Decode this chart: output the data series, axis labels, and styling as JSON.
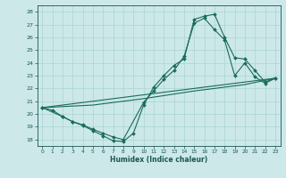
{
  "xlabel": "Humidex (Indice chaleur)",
  "xlim": [
    -0.5,
    23.5
  ],
  "ylim": [
    17.5,
    28.5
  ],
  "yticks": [
    18,
    19,
    20,
    21,
    22,
    23,
    24,
    25,
    26,
    27,
    28
  ],
  "xticks": [
    0,
    1,
    2,
    3,
    4,
    5,
    6,
    7,
    8,
    9,
    10,
    11,
    12,
    13,
    14,
    15,
    16,
    17,
    18,
    19,
    20,
    21,
    22,
    23
  ],
  "background_color": "#cce8e8",
  "grid_color": "#aad4d4",
  "line_color": "#1a6b5a",
  "line1_x": [
    0,
    1,
    2,
    3,
    4,
    5,
    6,
    7,
    8,
    9,
    10,
    11,
    12,
    13,
    14,
    15,
    16,
    17,
    18,
    19,
    20,
    21,
    22,
    23
  ],
  "line1_y": [
    20.5,
    20.3,
    19.8,
    19.4,
    19.1,
    18.7,
    18.3,
    17.9,
    17.85,
    18.5,
    20.7,
    22.1,
    23.0,
    23.8,
    24.3,
    27.4,
    27.65,
    27.8,
    26.0,
    24.4,
    24.3,
    23.4,
    22.5,
    22.8
  ],
  "line2_x": [
    0,
    2,
    3,
    4,
    5,
    6,
    7,
    8,
    10,
    11,
    12,
    13,
    14,
    15,
    16,
    17,
    18,
    19,
    20,
    21,
    22,
    23
  ],
  "line2_y": [
    20.5,
    19.8,
    19.4,
    19.15,
    18.8,
    18.5,
    18.2,
    18.0,
    20.9,
    21.8,
    22.7,
    23.4,
    24.5,
    27.1,
    27.5,
    26.6,
    25.8,
    23.0,
    24.0,
    22.9,
    22.4,
    22.8
  ],
  "line3_x": [
    0,
    23
  ],
  "line3_y": [
    20.5,
    22.8
  ],
  "line4_x": [
    0,
    5,
    10,
    15,
    20,
    23
  ],
  "line4_y": [
    20.5,
    20.7,
    21.2,
    21.8,
    22.3,
    22.8
  ]
}
